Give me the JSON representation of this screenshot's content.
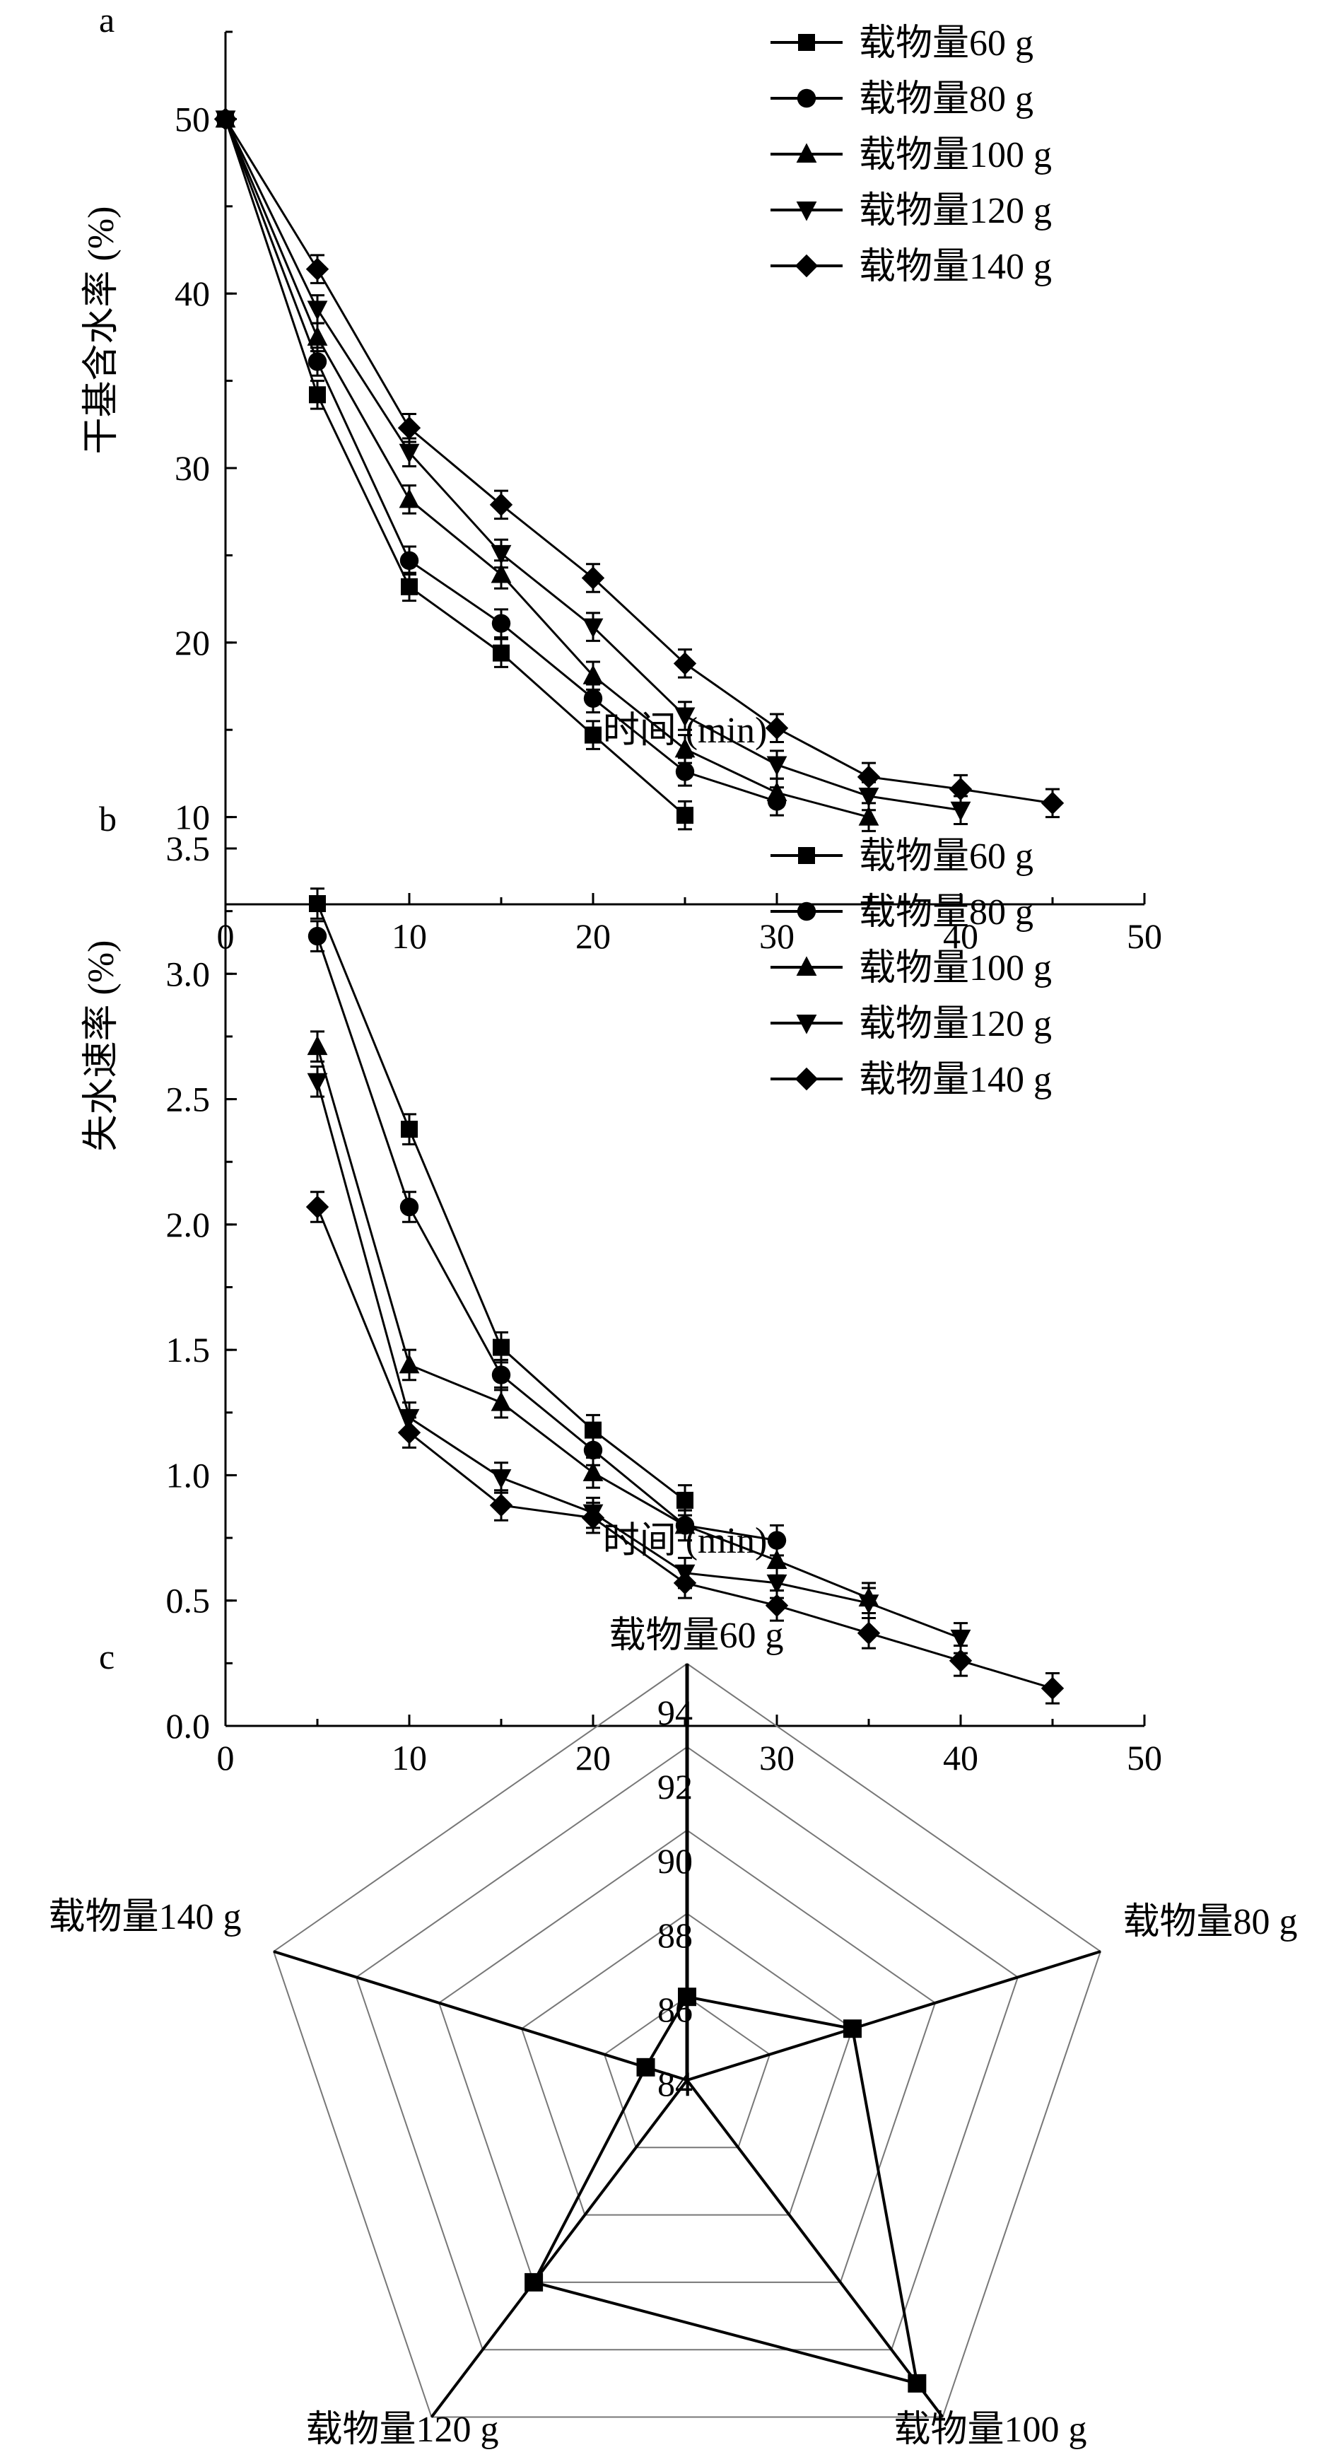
{
  "chart_data": [
    {
      "type": "line",
      "panel": "a",
      "xlabel": "时间 (min)",
      "ylabel": "干基含水率 (%)",
      "xlim": [
        0,
        50
      ],
      "ylim": [
        5,
        55
      ],
      "xticks": [
        0,
        10,
        20,
        30,
        40,
        50
      ],
      "yticks": [
        10,
        20,
        30,
        40,
        50
      ],
      "legend_position": "top-right",
      "error_bar": 0.8,
      "series": [
        {
          "name": "载物量60 g",
          "marker": "square",
          "x": [
            0,
            5,
            10,
            15,
            20,
            25
          ],
          "values": [
            50,
            34.2,
            23.2,
            19.4,
            14.7,
            10.1
          ]
        },
        {
          "name": "载物量80 g",
          "marker": "circle",
          "x": [
            0,
            5,
            10,
            15,
            20,
            25,
            30
          ],
          "values": [
            50,
            36.1,
            24.7,
            21.1,
            16.8,
            12.6,
            10.9
          ]
        },
        {
          "name": "载物量100 g",
          "marker": "triangle-up",
          "x": [
            0,
            5,
            10,
            15,
            20,
            25,
            30,
            35
          ],
          "values": [
            50,
            37.5,
            28.2,
            23.9,
            18.1,
            13.9,
            11.4,
            10.0
          ]
        },
        {
          "name": "载物量120 g",
          "marker": "triangle-down",
          "x": [
            0,
            5,
            10,
            15,
            20,
            25,
            30,
            35,
            40
          ],
          "values": [
            50,
            39.1,
            30.9,
            25.1,
            20.9,
            15.8,
            13.0,
            11.2,
            10.4
          ]
        },
        {
          "name": "载物量140 g",
          "marker": "diamond",
          "x": [
            0,
            5,
            10,
            15,
            20,
            25,
            30,
            35,
            40,
            45
          ],
          "values": [
            50,
            41.4,
            32.3,
            27.9,
            23.7,
            18.8,
            15.1,
            12.3,
            11.6,
            10.8
          ]
        }
      ]
    },
    {
      "type": "line",
      "panel": "b",
      "xlabel": "时间 (min)",
      "ylabel": "失水速率 (%)",
      "xlim": [
        0,
        50
      ],
      "ylim": [
        0,
        3.5
      ],
      "xticks": [
        0,
        10,
        20,
        30,
        40,
        50
      ],
      "yticks": [
        "0.0",
        "0.5",
        "1.0",
        "1.5",
        "2.0",
        "2.5",
        "3.0",
        "3.5"
      ],
      "legend_position": "top-right",
      "error_bar": 0.06,
      "series": [
        {
          "name": "载物量60 g",
          "marker": "square",
          "x": [
            5,
            10,
            15,
            20,
            25
          ],
          "values": [
            3.28,
            2.38,
            1.51,
            1.18,
            0.9
          ]
        },
        {
          "name": "载物量80 g",
          "marker": "circle",
          "x": [
            5,
            10,
            15,
            20,
            25,
            30
          ],
          "values": [
            3.15,
            2.07,
            1.4,
            1.1,
            0.8,
            0.74
          ]
        },
        {
          "name": "载物量100 g",
          "marker": "triangle-up",
          "x": [
            5,
            10,
            15,
            20,
            25,
            30,
            35
          ],
          "values": [
            2.71,
            1.44,
            1.29,
            1.01,
            0.8,
            0.66,
            0.51
          ]
        },
        {
          "name": "载物量120 g",
          "marker": "triangle-down",
          "x": [
            5,
            10,
            15,
            20,
            25,
            30,
            35,
            40
          ],
          "values": [
            2.57,
            1.23,
            0.99,
            0.85,
            0.61,
            0.57,
            0.49,
            0.35
          ]
        },
        {
          "name": "载物量140 g",
          "marker": "diamond",
          "x": [
            5,
            10,
            15,
            20,
            25,
            30,
            35,
            40,
            45
          ],
          "values": [
            2.07,
            1.17,
            0.88,
            0.83,
            0.57,
            0.48,
            0.37,
            0.26,
            0.15
          ]
        }
      ]
    },
    {
      "type": "radar",
      "panel": "c",
      "categories": [
        "载物量60 g",
        "载物量80 g",
        "载物量100 g",
        "载物量120 g",
        "载物量140 g"
      ],
      "values": [
        86,
        88,
        93,
        90,
        85
      ],
      "rlim": [
        84,
        94
      ],
      "rticks": [
        "84",
        "86",
        "88",
        "90",
        "92",
        "94"
      ]
    }
  ]
}
